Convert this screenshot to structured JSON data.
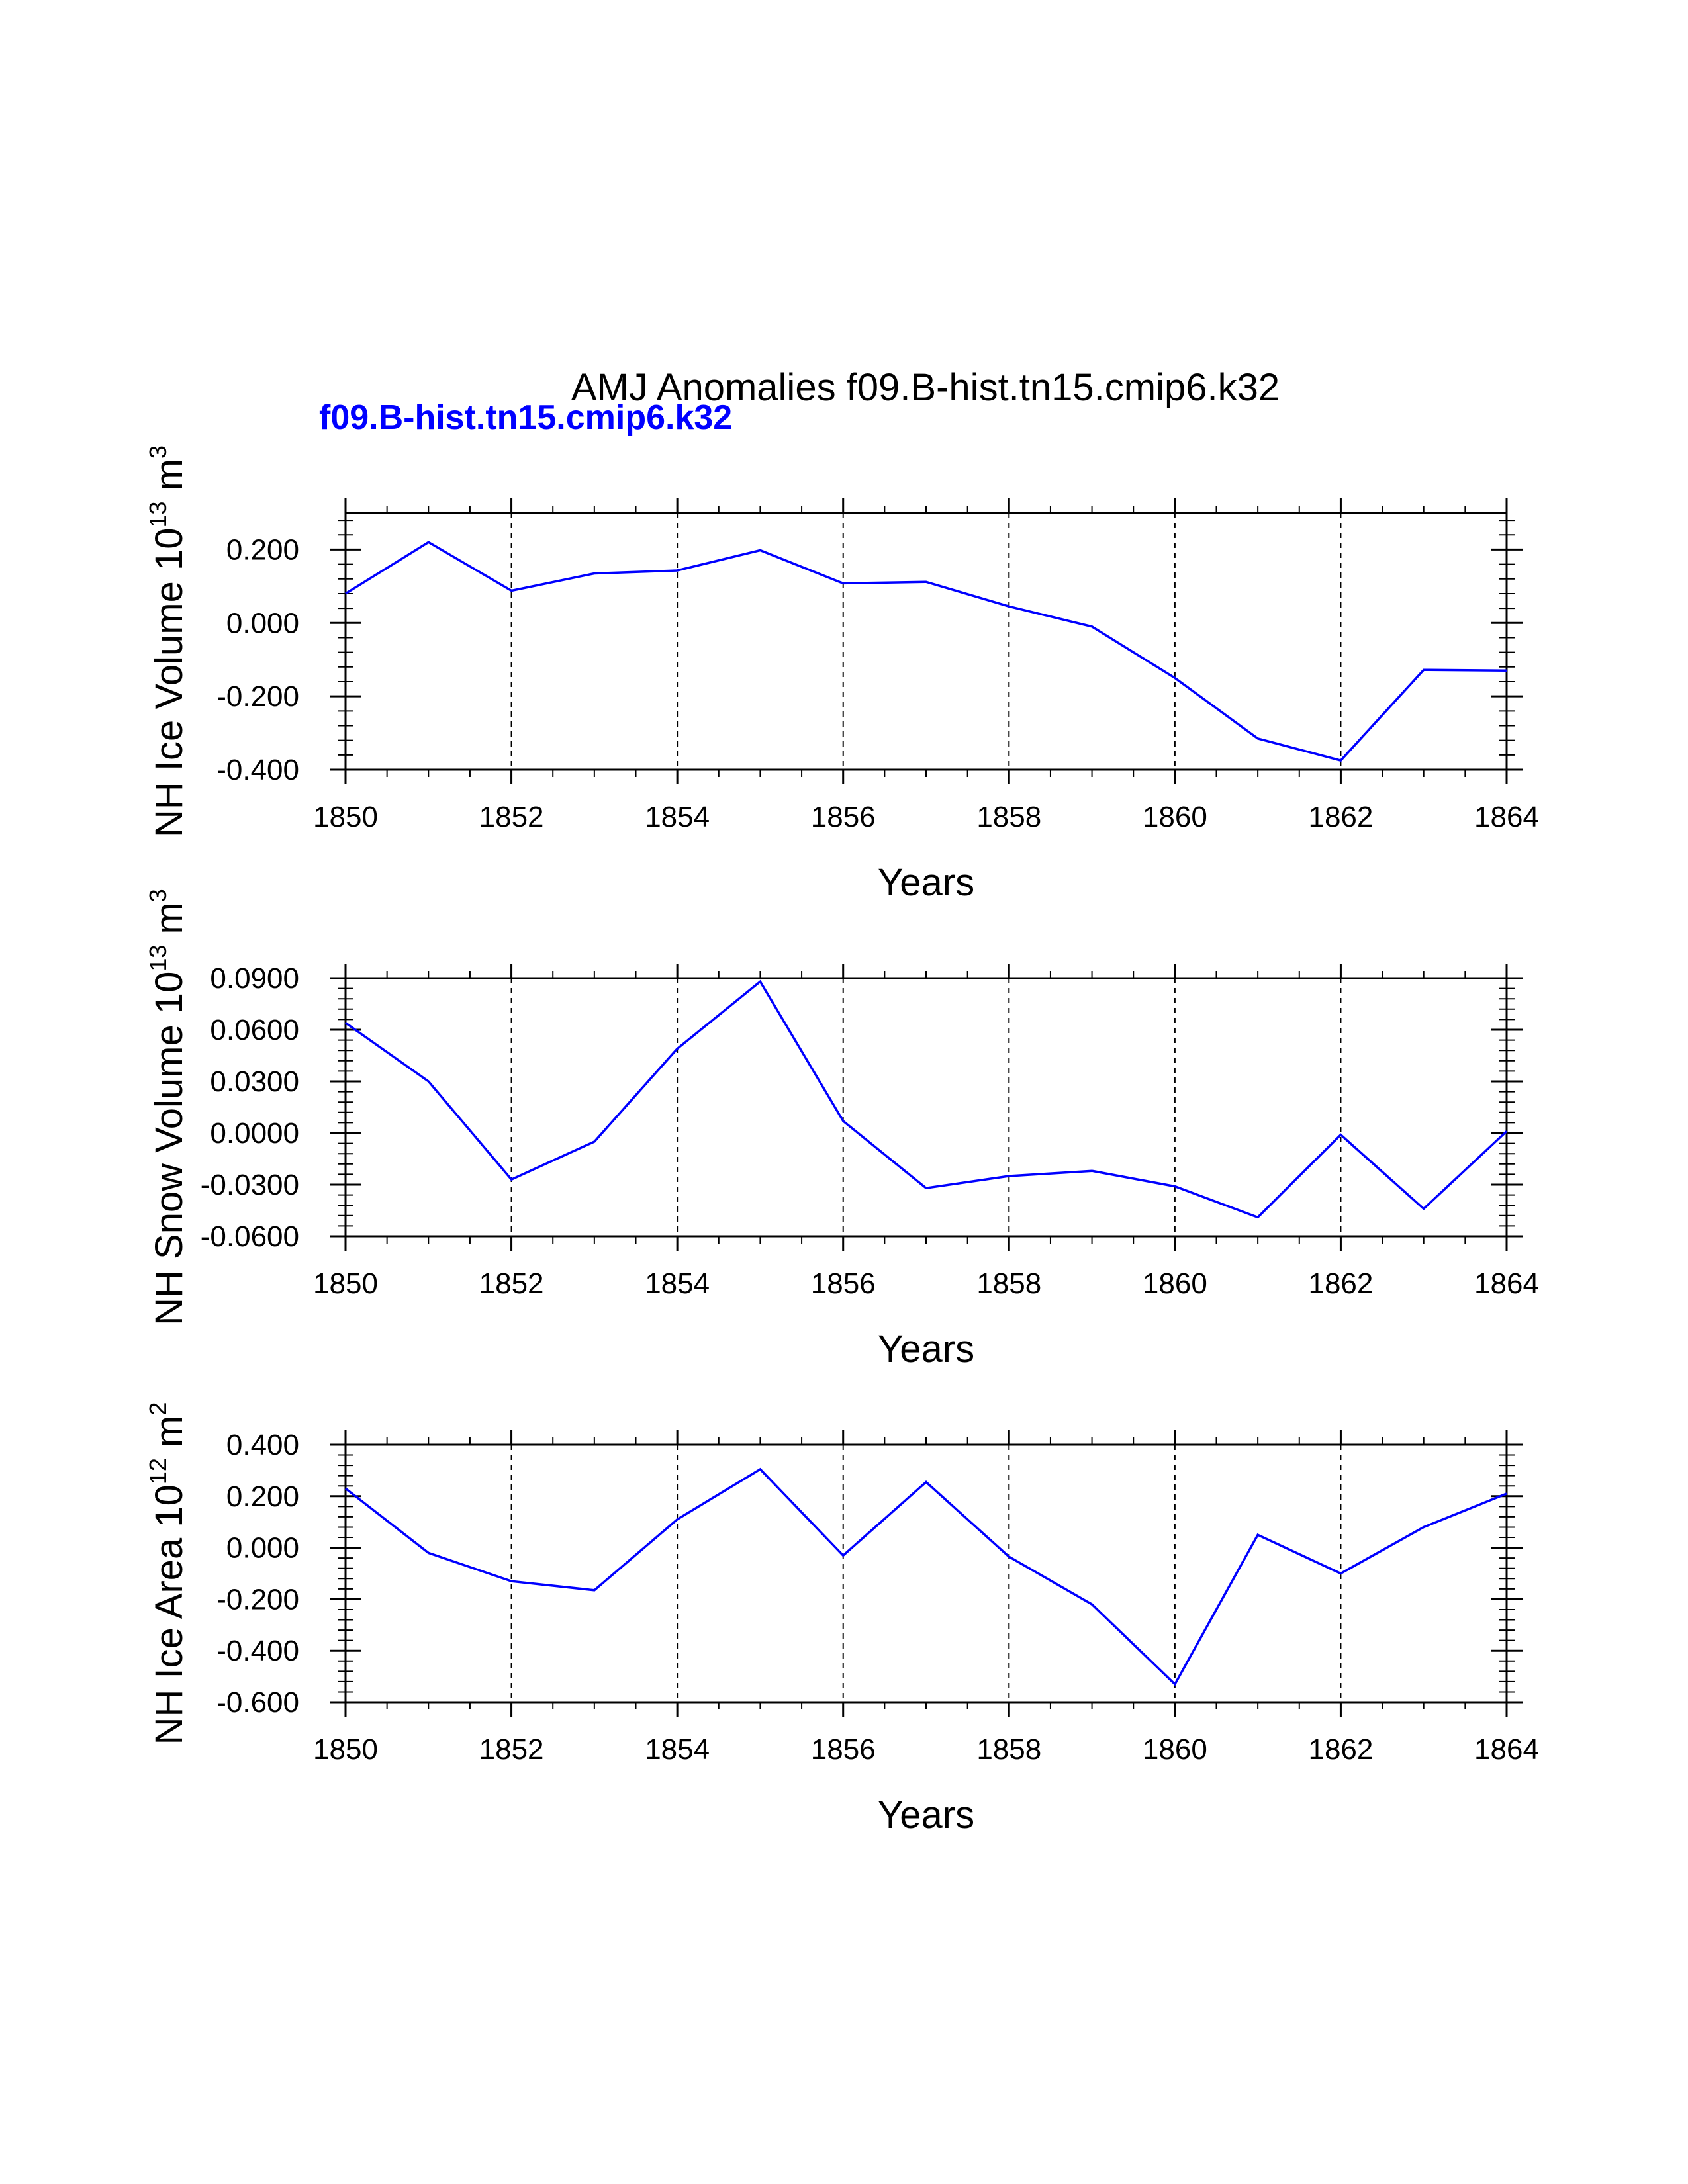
{
  "title": "AMJ Anomalies f09.B-hist.tn15.cmip6.k32",
  "case_label": "f09.B-hist.tn15.cmip6.k32",
  "colors": {
    "line": "#0000ff",
    "case_label": "#0000ff",
    "axis": "#000000"
  },
  "chart_data": [
    {
      "type": "line",
      "ylabel": {
        "base": "NH Ice Volume 10",
        "exp": "13",
        "unit": " m",
        "unit_exp": "3"
      },
      "xlabel": "Years",
      "xlim": [
        1850,
        1864
      ],
      "ylim": [
        -0.4,
        0.3
      ],
      "xticks": [
        1850,
        1852,
        1854,
        1856,
        1858,
        1860,
        1862,
        1864
      ],
      "xtick_labels": [
        "1850",
        "1852",
        "1854",
        "1856",
        "1858",
        "1860",
        "1862",
        "1864"
      ],
      "yticks": [
        -0.4,
        -0.2,
        0.0,
        0.2
      ],
      "ytick_labels": [
        "-0.400",
        "-0.200",
        "0.000",
        "0.200"
      ],
      "grid": "vertical dashed at major x ticks",
      "x": [
        1850,
        1851,
        1852,
        1853,
        1854,
        1855,
        1856,
        1857,
        1858,
        1859,
        1860,
        1861,
        1862,
        1863,
        1864
      ],
      "series": [
        {
          "name": "f09.B-hist.tn15.cmip6.k32",
          "values": [
            0.08,
            0.22,
            0.088,
            0.135,
            0.143,
            0.198,
            0.108,
            0.112,
            0.045,
            -0.01,
            -0.15,
            -0.315,
            -0.375,
            -0.128,
            -0.13
          ]
        }
      ]
    },
    {
      "type": "line",
      "ylabel": {
        "base": "NH Snow Volume 10",
        "exp": "13",
        "unit": " m",
        "unit_exp": "3"
      },
      "xlabel": "Years",
      "xlim": [
        1850,
        1864
      ],
      "ylim": [
        -0.06,
        0.09
      ],
      "xticks": [
        1850,
        1852,
        1854,
        1856,
        1858,
        1860,
        1862,
        1864
      ],
      "xtick_labels": [
        "1850",
        "1852",
        "1854",
        "1856",
        "1858",
        "1860",
        "1862",
        "1864"
      ],
      "yticks": [
        -0.06,
        -0.03,
        0.0,
        0.03,
        0.06,
        0.09
      ],
      "ytick_labels": [
        "-0.0600",
        "-0.0300",
        "0.0000",
        "0.0300",
        "0.0600",
        "0.0900"
      ],
      "grid": "vertical dashed at major x ticks",
      "x": [
        1850,
        1851,
        1852,
        1853,
        1854,
        1855,
        1856,
        1857,
        1858,
        1859,
        1860,
        1861,
        1862,
        1863,
        1864
      ],
      "series": [
        {
          "name": "f09.B-hist.tn15.cmip6.k32",
          "values": [
            0.064,
            0.03,
            -0.027,
            -0.005,
            0.049,
            0.088,
            0.007,
            -0.032,
            -0.025,
            -0.022,
            -0.031,
            -0.049,
            -0.001,
            -0.044,
            0.001
          ]
        }
      ]
    },
    {
      "type": "line",
      "ylabel": {
        "base": "NH Ice Area 10",
        "exp": "12",
        "unit": " m",
        "unit_exp": "2"
      },
      "xlabel": "Years",
      "xlim": [
        1850,
        1864
      ],
      "ylim": [
        -0.6,
        0.4
      ],
      "xticks": [
        1850,
        1852,
        1854,
        1856,
        1858,
        1860,
        1862,
        1864
      ],
      "xtick_labels": [
        "1850",
        "1852",
        "1854",
        "1856",
        "1858",
        "1860",
        "1862",
        "1864"
      ],
      "yticks": [
        -0.6,
        -0.4,
        -0.2,
        0.0,
        0.2,
        0.4
      ],
      "ytick_labels": [
        "-0.600",
        "-0.400",
        "-0.200",
        "0.000",
        "0.200",
        "0.400"
      ],
      "grid": "vertical dashed at major x ticks",
      "x": [
        1850,
        1851,
        1852,
        1853,
        1854,
        1855,
        1856,
        1857,
        1858,
        1859,
        1860,
        1861,
        1862,
        1863,
        1864
      ],
      "series": [
        {
          "name": "f09.B-hist.tn15.cmip6.k32",
          "values": [
            0.23,
            -0.02,
            -0.13,
            -0.165,
            0.11,
            0.305,
            -0.03,
            0.255,
            -0.035,
            -0.22,
            -0.53,
            0.05,
            -0.1,
            0.08,
            0.21
          ]
        }
      ]
    }
  ]
}
